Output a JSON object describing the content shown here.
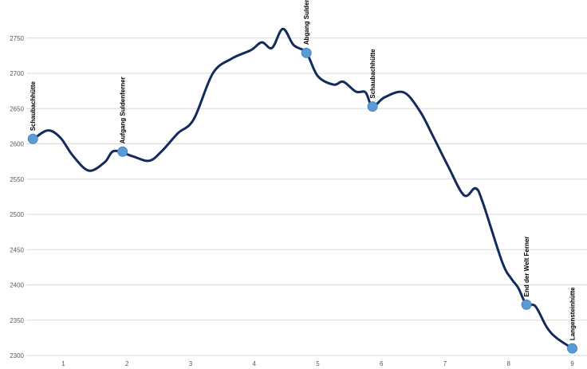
{
  "chart_data": {
    "type": "line",
    "title": "",
    "xlabel": "",
    "ylabel": "",
    "xlim": [
      0.5,
      9.3
    ],
    "ylim": [
      2300,
      2770
    ],
    "x_ticks": [
      "1",
      "2",
      "3",
      "4",
      "5",
      "6",
      "7",
      "8",
      "9"
    ],
    "y_ticks": [
      "2300",
      "2350",
      "2400",
      "2450",
      "2500",
      "2550",
      "2600",
      "2650",
      "2700",
      "2750"
    ],
    "grid": true,
    "line_color": "#142a5c",
    "marker_color": "#5b9bd5",
    "series": [
      {
        "points": [
          [
            0.52,
            2606
          ],
          [
            0.75,
            2619
          ],
          [
            0.95,
            2609
          ],
          [
            1.15,
            2583
          ],
          [
            1.4,
            2562
          ],
          [
            1.65,
            2574
          ],
          [
            1.8,
            2590
          ],
          [
            2.1,
            2582
          ],
          [
            2.35,
            2576
          ],
          [
            2.55,
            2590
          ],
          [
            2.8,
            2615
          ],
          [
            3.05,
            2635
          ],
          [
            3.35,
            2700
          ],
          [
            3.65,
            2721
          ],
          [
            3.95,
            2733
          ],
          [
            4.12,
            2744
          ],
          [
            4.28,
            2736
          ],
          [
            4.45,
            2763
          ],
          [
            4.62,
            2740
          ],
          [
            4.82,
            2729
          ],
          [
            5.0,
            2696
          ],
          [
            5.25,
            2684
          ],
          [
            5.4,
            2688
          ],
          [
            5.6,
            2674
          ],
          [
            5.75,
            2673
          ],
          [
            5.86,
            2653
          ],
          [
            6.05,
            2666
          ],
          [
            6.35,
            2673
          ],
          [
            6.6,
            2647
          ],
          [
            6.8,
            2613
          ],
          [
            7.05,
            2568
          ],
          [
            7.3,
            2527
          ],
          [
            7.48,
            2537
          ],
          [
            7.6,
            2515
          ],
          [
            7.9,
            2432
          ],
          [
            8.05,
            2408
          ],
          [
            8.15,
            2396
          ],
          [
            8.28,
            2372
          ],
          [
            8.42,
            2370
          ],
          [
            8.6,
            2340
          ],
          [
            8.75,
            2325
          ],
          [
            9.0,
            2310
          ]
        ]
      }
    ],
    "waypoints": [
      {
        "x": 0.52,
        "y": 2607,
        "label": "Schaubachhütte"
      },
      {
        "x": 1.93,
        "y": 2589,
        "label": "Aufgang Suldenferner"
      },
      {
        "x": 4.82,
        "y": 2729,
        "label": "Abgang Suldenferner"
      },
      {
        "x": 5.86,
        "y": 2653,
        "label": "Schaubachhütte"
      },
      {
        "x": 8.28,
        "y": 2372,
        "label": "End der Welt Ferner"
      },
      {
        "x": 9.0,
        "y": 2310,
        "label": "Langensteinhütte"
      }
    ]
  }
}
